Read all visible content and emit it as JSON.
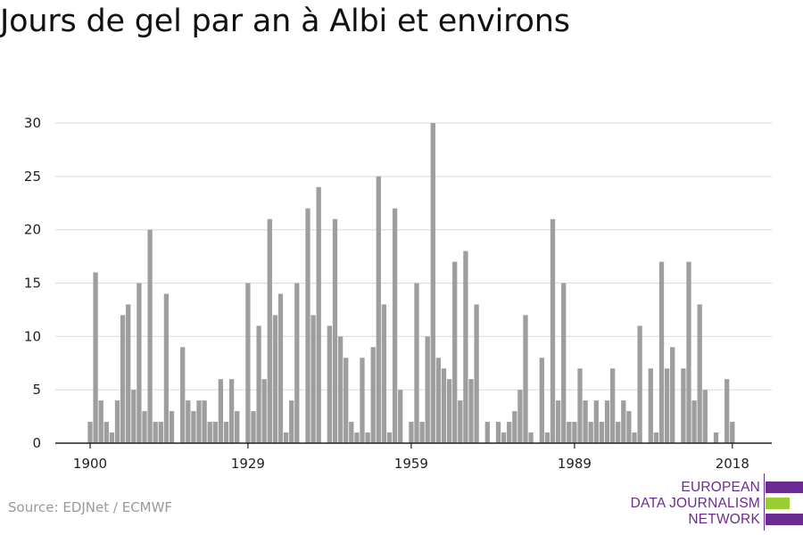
{
  "title": "Jours de gel par an à Albi et environs",
  "source": "Source: EDJNet / ECMWF",
  "logo": {
    "lines": [
      "EUROPEAN",
      "DATA JOURNALISM",
      "NETWORK"
    ],
    "colors": {
      "purple": "#6a2c91",
      "green": "#9acd32"
    }
  },
  "colors": {
    "bar": "#9e9e9e",
    "grid": "#dddddd",
    "axis": "#222222"
  },
  "chart_data": {
    "type": "bar",
    "title": "Jours de gel par an à Albi et environs",
    "xlabel": "",
    "ylabel": "",
    "ylim": [
      0,
      30
    ],
    "yticks": [
      0,
      5,
      10,
      15,
      20,
      25,
      30
    ],
    "xticks": [
      1900,
      1929,
      1959,
      1989,
      2018
    ],
    "grid": true,
    "x": [
      1900,
      1901,
      1902,
      1903,
      1904,
      1905,
      1906,
      1907,
      1908,
      1909,
      1910,
      1911,
      1912,
      1913,
      1914,
      1915,
      1916,
      1917,
      1918,
      1919,
      1920,
      1921,
      1922,
      1923,
      1924,
      1925,
      1926,
      1927,
      1928,
      1929,
      1930,
      1931,
      1932,
      1933,
      1934,
      1935,
      1936,
      1937,
      1938,
      1939,
      1940,
      1941,
      1942,
      1943,
      1944,
      1945,
      1946,
      1947,
      1948,
      1949,
      1950,
      1951,
      1952,
      1953,
      1954,
      1955,
      1956,
      1957,
      1958,
      1959,
      1960,
      1961,
      1962,
      1963,
      1964,
      1965,
      1966,
      1967,
      1968,
      1969,
      1970,
      1971,
      1972,
      1973,
      1974,
      1975,
      1976,
      1977,
      1978,
      1979,
      1980,
      1981,
      1982,
      1983,
      1984,
      1985,
      1986,
      1987,
      1988,
      1989,
      1990,
      1991,
      1992,
      1993,
      1994,
      1995,
      1996,
      1997,
      1998,
      1999,
      2000,
      2001,
      2002,
      2003,
      2004,
      2005,
      2006,
      2007,
      2008,
      2009,
      2010,
      2011,
      2012,
      2013,
      2014,
      2015,
      2016,
      2017,
      2018,
      2019
    ],
    "values": [
      2,
      16,
      4,
      2,
      1,
      4,
      12,
      13,
      5,
      15,
      3,
      20,
      2,
      2,
      14,
      3,
      0,
      9,
      4,
      3,
      4,
      4,
      2,
      2,
      6,
      2,
      6,
      3,
      0,
      15,
      3,
      11,
      6,
      21,
      12,
      14,
      1,
      4,
      15,
      0,
      22,
      12,
      24,
      0,
      11,
      21,
      10,
      8,
      2,
      1,
      8,
      1,
      9,
      25,
      13,
      1,
      22,
      5,
      0,
      2,
      15,
      2,
      10,
      30,
      8,
      7,
      6,
      17,
      4,
      18,
      6,
      13,
      0,
      2,
      0,
      2,
      1,
      2,
      3,
      5,
      12,
      1,
      0,
      8,
      1,
      21,
      4,
      15,
      2,
      2,
      7,
      4,
      2,
      4,
      2,
      4,
      7,
      2,
      4,
      3,
      1,
      11,
      0,
      7,
      1,
      17,
      7,
      9,
      0,
      7,
      17,
      4,
      13,
      5,
      0,
      1,
      0,
      6,
      2,
      0
    ]
  }
}
